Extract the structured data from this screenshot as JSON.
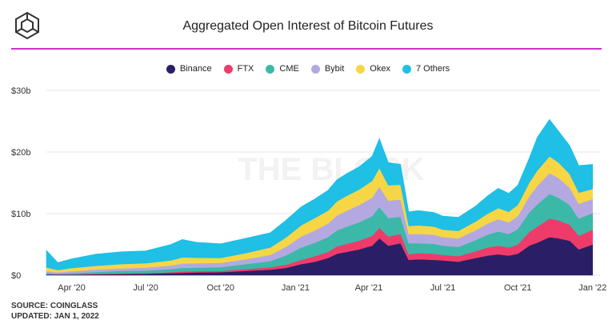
{
  "header": {
    "title": "Aggregated Open Interest of Bitcoin Futures",
    "logo_icon": "the-block-cube-logo"
  },
  "footer": {
    "source": "SOURCE: COINGLASS",
    "updated": "UPDATED: JAN 1, 2022"
  },
  "watermark": "THE BLOCK",
  "colors": {
    "accent_rule": "#cc33cc",
    "grid": "#e6e6e6"
  },
  "chart_data": {
    "type": "area",
    "stacked": true,
    "title": "Aggregated Open Interest of Bitcoin Futures",
    "xlabel": "",
    "ylabel": "",
    "ylim": [
      0,
      30
    ],
    "yticks": [
      0,
      10,
      20,
      30
    ],
    "ytick_labels": [
      "$0",
      "$10b",
      "$20b",
      "$30b"
    ],
    "xtick_labels": [
      "Apr '20",
      "Jul '20",
      "Oct '20",
      "Jan '21",
      "Apr '21",
      "Jul '21",
      "Oct '21",
      "Jan '22"
    ],
    "xtick_dates": [
      "2020-04-01",
      "2020-07-01",
      "2020-10-01",
      "2021-01-01",
      "2021-04-01",
      "2021-07-01",
      "2021-10-01",
      "2022-01-01"
    ],
    "grid": true,
    "legend_position": "top-center",
    "x": [
      "2020-03-01",
      "2020-03-15",
      "2020-04-01",
      "2020-05-01",
      "2020-06-01",
      "2020-07-01",
      "2020-08-01",
      "2020-08-15",
      "2020-09-01",
      "2020-10-01",
      "2020-11-01",
      "2020-12-01",
      "2020-12-20",
      "2021-01-08",
      "2021-01-25",
      "2021-02-10",
      "2021-02-21",
      "2021-03-05",
      "2021-03-20",
      "2021-04-05",
      "2021-04-14",
      "2021-04-25",
      "2021-05-10",
      "2021-05-20",
      "2021-06-01",
      "2021-06-20",
      "2021-07-01",
      "2021-07-20",
      "2021-08-10",
      "2021-08-25",
      "2021-09-07",
      "2021-09-20",
      "2021-10-01",
      "2021-10-15",
      "2021-10-25",
      "2021-11-09",
      "2021-11-20",
      "2021-12-04",
      "2021-12-15",
      "2022-01-01"
    ],
    "series": [
      {
        "name": "Binance",
        "color": "#2a1f66",
        "values": [
          0.1,
          0.1,
          0.1,
          0.15,
          0.2,
          0.25,
          0.35,
          0.4,
          0.45,
          0.5,
          0.7,
          0.9,
          1.2,
          1.8,
          2.2,
          2.8,
          3.5,
          3.8,
          4.2,
          4.8,
          6.0,
          4.8,
          5.2,
          2.5,
          2.6,
          2.5,
          2.4,
          2.2,
          2.8,
          3.2,
          3.4,
          3.2,
          3.5,
          4.8,
          5.3,
          6.2,
          6.0,
          5.6,
          4.2,
          5.0
        ]
      },
      {
        "name": "FTX",
        "color": "#ef3b6a",
        "values": [
          0.05,
          0.05,
          0.05,
          0.08,
          0.1,
          0.1,
          0.15,
          0.2,
          0.2,
          0.2,
          0.3,
          0.4,
          0.5,
          0.7,
          0.9,
          1.0,
          1.2,
          1.3,
          1.4,
          1.6,
          1.7,
          1.5,
          1.5,
          0.9,
          1.0,
          1.0,
          0.9,
          0.9,
          1.1,
          1.3,
          1.4,
          1.3,
          1.5,
          2.2,
          2.6,
          3.0,
          2.9,
          2.6,
          2.2,
          2.4
        ]
      },
      {
        "name": "CME",
        "color": "#3cb8a8",
        "values": [
          0.2,
          0.1,
          0.2,
          0.3,
          0.4,
          0.4,
          0.5,
          0.6,
          0.6,
          0.6,
          0.8,
          1.0,
          1.5,
          2.0,
          2.2,
          2.4,
          2.6,
          2.8,
          3.0,
          3.2,
          3.4,
          3.0,
          2.8,
          1.8,
          1.6,
          1.6,
          1.5,
          1.5,
          1.8,
          2.1,
          2.3,
          2.2,
          2.5,
          3.2,
          3.6,
          4.0,
          3.7,
          3.2,
          2.8,
          2.7
        ]
      },
      {
        "name": "Bybit",
        "color": "#b3a9e0",
        "values": [
          0.3,
          0.2,
          0.3,
          0.4,
          0.4,
          0.5,
          0.6,
          0.7,
          0.7,
          0.7,
          0.8,
          1.0,
          1.4,
          1.8,
          2.0,
          2.2,
          2.4,
          2.6,
          2.8,
          3.0,
          3.3,
          2.8,
          2.8,
          1.5,
          1.5,
          1.5,
          1.4,
          1.4,
          1.6,
          1.8,
          2.0,
          1.9,
          2.1,
          2.6,
          3.0,
          3.4,
          3.2,
          2.8,
          2.4,
          2.3
        ]
      },
      {
        "name": "Okex",
        "color": "#f7d646",
        "values": [
          0.6,
          0.4,
          0.5,
          0.6,
          0.7,
          0.7,
          0.8,
          1.0,
          0.9,
          0.8,
          1.0,
          1.2,
          1.5,
          1.8,
          2.0,
          2.1,
          2.3,
          2.4,
          2.5,
          2.7,
          3.0,
          2.5,
          2.4,
          1.3,
          1.4,
          1.3,
          1.2,
          1.2,
          1.4,
          1.6,
          1.8,
          1.7,
          1.8,
          2.2,
          2.5,
          2.7,
          2.5,
          2.2,
          1.8,
          1.6
        ]
      },
      {
        "name": "7 Others",
        "color": "#1fbfe6",
        "values": [
          2.8,
          1.2,
          1.5,
          1.9,
          2.0,
          2.0,
          2.6,
          2.9,
          2.5,
          2.3,
          2.4,
          2.4,
          2.8,
          3.0,
          3.1,
          3.3,
          3.5,
          3.6,
          3.7,
          4.0,
          4.8,
          3.7,
          3.3,
          2.3,
          2.4,
          2.3,
          2.2,
          2.2,
          2.5,
          2.9,
          3.2,
          3.0,
          3.2,
          4.0,
          5.4,
          6.0,
          5.1,
          4.6,
          4.4,
          4.0
        ]
      }
    ]
  }
}
